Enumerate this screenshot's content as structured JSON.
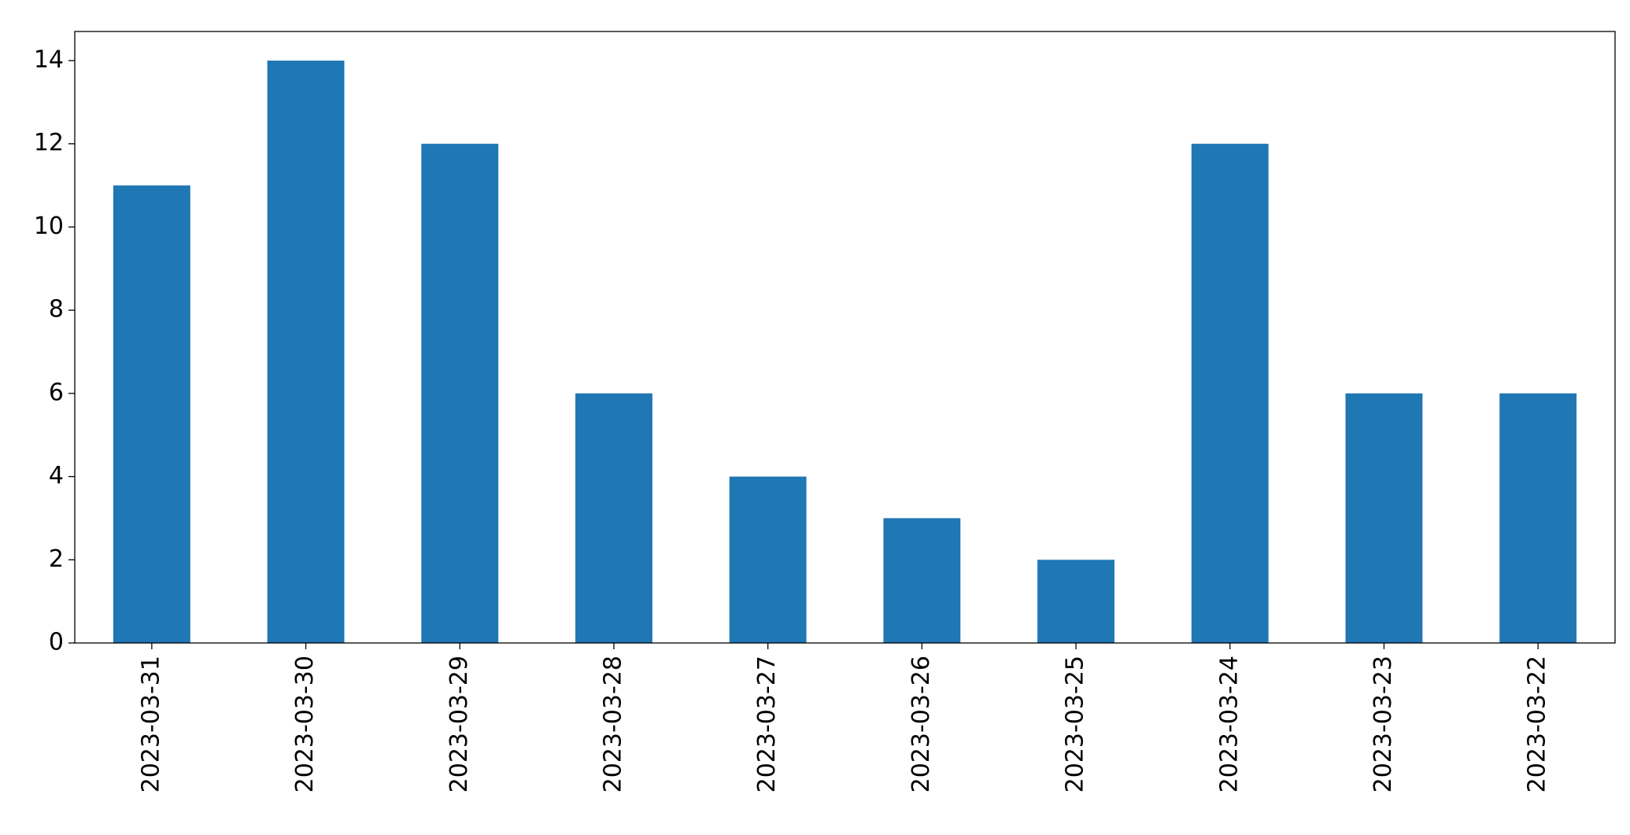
{
  "chart_data": {
    "type": "bar",
    "categories": [
      "2023-03-31",
      "2023-03-30",
      "2023-03-29",
      "2023-03-28",
      "2023-03-27",
      "2023-03-26",
      "2023-03-25",
      "2023-03-24",
      "2023-03-23",
      "2023-03-22"
    ],
    "values": [
      11,
      14,
      12,
      6,
      4,
      3,
      2,
      12,
      6,
      6
    ],
    "color": "#1f77b4",
    "ylim": [
      0,
      14.7
    ],
    "yticks": [
      0,
      2,
      4,
      6,
      8,
      10,
      12,
      14
    ],
    "grid": false
  }
}
